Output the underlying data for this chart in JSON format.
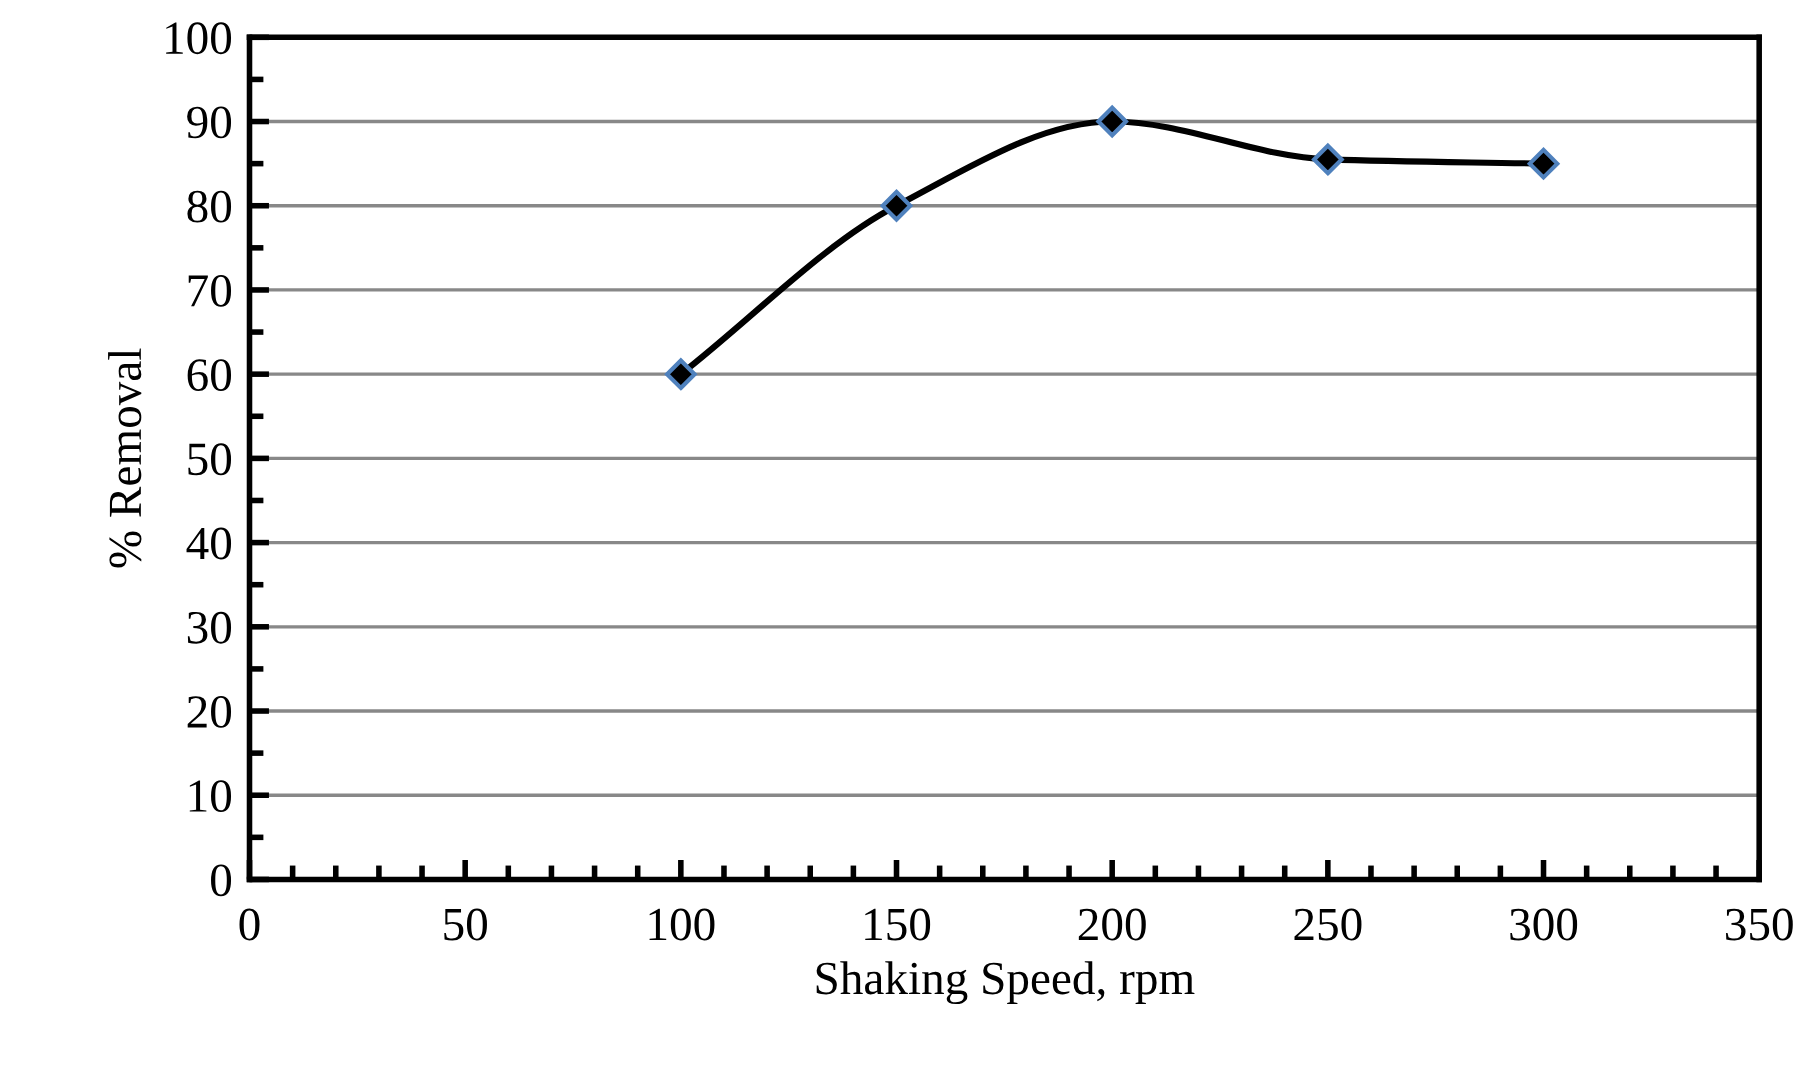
{
  "chart_data": {
    "type": "line",
    "xlabel": "Shaking Speed, rpm",
    "ylabel": "% Removal",
    "x": [
      100,
      150,
      200,
      250,
      300
    ],
    "series": [
      {
        "color": "#000000",
        "values": [
          60,
          80,
          90,
          85.5,
          85
        ]
      }
    ],
    "marker": "diamond",
    "line_style": "solid",
    "grid": "y",
    "xlim": [
      0,
      350
    ],
    "xticks": [
      0,
      50,
      100,
      150,
      200,
      250,
      300,
      350
    ],
    "ylim": [
      0,
      100
    ],
    "yticks": [
      0,
      10,
      20,
      30,
      40,
      50,
      60,
      70,
      80,
      90,
      100
    ]
  }
}
